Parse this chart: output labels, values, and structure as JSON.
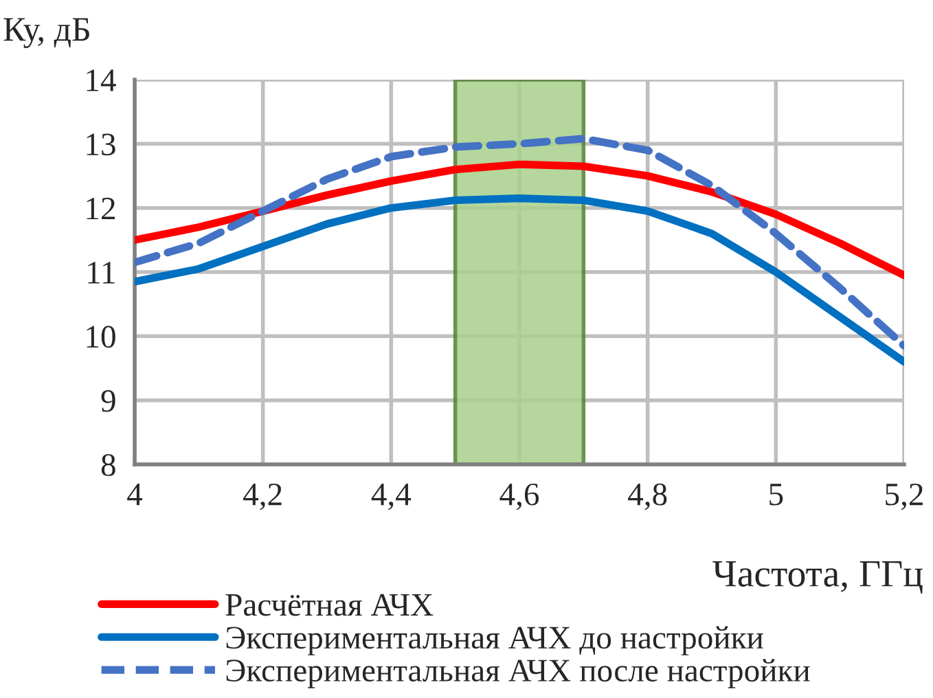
{
  "chart_data": {
    "type": "line",
    "xlabel": "Частота, ГГц",
    "ylabel": "Ку, дБ",
    "x": [
      4,
      4.1,
      4.2,
      4.3,
      4.4,
      4.5,
      4.6,
      4.7,
      4.8,
      4.9,
      5.0,
      5.1,
      5.2
    ],
    "series": [
      {
        "name": "Расчётная АЧХ",
        "color": "#ff0000",
        "line_style": "solid",
        "values": [
          11.5,
          11.7,
          11.95,
          12.2,
          12.42,
          12.6,
          12.68,
          12.65,
          12.5,
          12.25,
          11.9,
          11.45,
          10.95
        ]
      },
      {
        "name": "Экспериментальная АЧХ до настройки",
        "color": "#0070c0",
        "line_style": "solid",
        "values": [
          10.85,
          11.05,
          11.4,
          11.75,
          12.0,
          12.12,
          12.15,
          12.12,
          11.95,
          11.6,
          11.0,
          10.3,
          9.6
        ]
      },
      {
        "name": "Экспериментальная АЧХ после настройки",
        "color": "#4472c4",
        "line_style": "dashed",
        "values": [
          11.15,
          11.45,
          11.95,
          12.45,
          12.8,
          12.95,
          13.0,
          13.08,
          12.9,
          12.35,
          11.6,
          10.75,
          9.85
        ]
      }
    ],
    "xlim": [
      4,
      5.2
    ],
    "xticks": [
      4,
      {
        "value": 4.2,
        "label": "4,2"
      },
      {
        "value": 4.4,
        "label": "4,4"
      },
      {
        "value": 4.6,
        "label": "4,6"
      },
      {
        "value": 4.8,
        "label": "4,8"
      },
      5,
      {
        "value": 5.2,
        "label": "5,2"
      }
    ],
    "ylim": [
      8,
      14
    ],
    "yticks": [
      8,
      9,
      10,
      11,
      12,
      13,
      14
    ],
    "bands": [
      {
        "axis": "x",
        "from": 4.5,
        "to": 4.7,
        "color": "#a9d18e"
      }
    ],
    "grid": true,
    "legend": "bottom left",
    "marker": "none"
  }
}
